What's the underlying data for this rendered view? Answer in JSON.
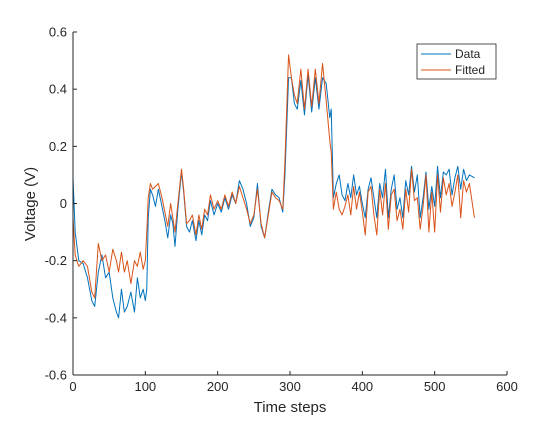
{
  "chart_data": {
    "type": "line",
    "xlabel": "Time steps",
    "ylabel": "Voltage (V)",
    "xlim": [
      0,
      600
    ],
    "ylim": [
      -0.6,
      0.6
    ],
    "x_ticks": [
      0,
      100,
      200,
      300,
      400,
      500,
      600
    ],
    "y_ticks": [
      -0.6,
      -0.4,
      -0.2,
      0,
      0.2,
      0.4,
      0.6
    ],
    "x_tick_labels": [
      "0",
      "100",
      "200",
      "300",
      "400",
      "500",
      "600"
    ],
    "y_tick_labels": [
      "-0.6",
      "-0.4",
      "-0.2",
      "0",
      "0.2",
      "0.4",
      "0.6"
    ],
    "grid": false,
    "legend_position": "top-right",
    "series": [
      {
        "name": "Data",
        "color": "#0072BD",
        "points": [
          [
            0,
            0.09
          ],
          [
            3,
            -0.1
          ],
          [
            8,
            -0.2
          ],
          [
            14,
            -0.21
          ],
          [
            20,
            -0.26
          ],
          [
            26,
            -0.34
          ],
          [
            30,
            -0.36
          ],
          [
            35,
            -0.24
          ],
          [
            40,
            -0.18
          ],
          [
            45,
            -0.26
          ],
          [
            50,
            -0.24
          ],
          [
            55,
            -0.33
          ],
          [
            60,
            -0.38
          ],
          [
            63,
            -0.4
          ],
          [
            67,
            -0.3
          ],
          [
            71,
            -0.38
          ],
          [
            75,
            -0.36
          ],
          [
            80,
            -0.31
          ],
          [
            85,
            -0.38
          ],
          [
            89,
            -0.26
          ],
          [
            93,
            -0.33
          ],
          [
            97,
            -0.3
          ],
          [
            100,
            -0.34
          ],
          [
            102,
            -0.3
          ],
          [
            104,
            -0.05
          ],
          [
            107,
            0.05
          ],
          [
            110,
            0.03
          ],
          [
            114,
            -0.01
          ],
          [
            118,
            0.05
          ],
          [
            123,
            -0.01
          ],
          [
            127,
            -0.06
          ],
          [
            131,
            -0.12
          ],
          [
            135,
            -0.04
          ],
          [
            138,
            -0.07
          ],
          [
            141,
            -0.15
          ],
          [
            145,
            -0.02
          ],
          [
            150,
            0.11
          ],
          [
            153,
            0.04
          ],
          [
            157,
            -0.08
          ],
          [
            161,
            -0.1
          ],
          [
            165,
            -0.06
          ],
          [
            170,
            -0.13
          ],
          [
            174,
            -0.06
          ],
          [
            178,
            -0.11
          ],
          [
            182,
            -0.04
          ],
          [
            186,
            -0.06
          ],
          [
            190,
            0.01
          ],
          [
            195,
            -0.04
          ],
          [
            200,
            0.0
          ],
          [
            205,
            -0.03
          ],
          [
            210,
            0.02
          ],
          [
            215,
            -0.02
          ],
          [
            220,
            0.03
          ],
          [
            225,
            0.0
          ],
          [
            230,
            0.08
          ],
          [
            235,
            0.05
          ],
          [
            240,
            0.0
          ],
          [
            245,
            -0.08
          ],
          [
            250,
            -0.05
          ],
          [
            255,
            0.07
          ],
          [
            260,
            -0.08
          ],
          [
            265,
            -0.12
          ],
          [
            270,
            -0.03
          ],
          [
            275,
            0.05
          ],
          [
            280,
            0.03
          ],
          [
            285,
            0.02
          ],
          [
            290,
            -0.03
          ],
          [
            293,
            0.1
          ],
          [
            298,
            0.44
          ],
          [
            302,
            0.44
          ],
          [
            306,
            0.35
          ],
          [
            310,
            0.33
          ],
          [
            315,
            0.43
          ],
          [
            320,
            0.31
          ],
          [
            325,
            0.45
          ],
          [
            330,
            0.32
          ],
          [
            335,
            0.44
          ],
          [
            340,
            0.33
          ],
          [
            345,
            0.44
          ],
          [
            350,
            0.42
          ],
          [
            355,
            0.3
          ],
          [
            357,
            0.33
          ],
          [
            360,
            0.02
          ],
          [
            364,
            0.07
          ],
          [
            368,
            0.1
          ],
          [
            372,
            0.03
          ],
          [
            376,
            0.01
          ],
          [
            380,
            0.07
          ],
          [
            384,
            0.02
          ],
          [
            388,
            0.1
          ],
          [
            392,
            0.03
          ],
          [
            396,
            0.06
          ],
          [
            400,
            0.0
          ],
          [
            404,
            -0.05
          ],
          [
            408,
            0.05
          ],
          [
            412,
            0.09
          ],
          [
            416,
            0.02
          ],
          [
            420,
            -0.05
          ],
          [
            424,
            0.07
          ],
          [
            428,
            0.02
          ],
          [
            432,
            0.12
          ],
          [
            436,
            -0.05
          ],
          [
            440,
            0.05
          ],
          [
            444,
            0.1
          ],
          [
            448,
            -0.02
          ],
          [
            452,
            0.02
          ],
          [
            456,
            -0.05
          ],
          [
            460,
            0.08
          ],
          [
            464,
            0.03
          ],
          [
            468,
            0.13
          ],
          [
            472,
            0.04
          ],
          [
            476,
            0.1
          ],
          [
            480,
            -0.05
          ],
          [
            484,
            0.02
          ],
          [
            488,
            0.11
          ],
          [
            492,
            -0.02
          ],
          [
            496,
            0.06
          ],
          [
            500,
            -0.01
          ],
          [
            504,
            0.13
          ],
          [
            508,
            0.02
          ],
          [
            512,
            0.11
          ],
          [
            516,
            0.1
          ],
          [
            520,
            0.12
          ],
          [
            524,
            0.03
          ],
          [
            528,
            0.09
          ],
          [
            532,
            0.13
          ],
          [
            536,
            0.05
          ],
          [
            540,
            0.12
          ],
          [
            544,
            0.08
          ],
          [
            548,
            0.1
          ],
          [
            555,
            0.09
          ]
        ]
      },
      {
        "name": "Fitted",
        "color": "#D95319",
        "points": [
          [
            0,
            -0.05
          ],
          [
            3,
            -0.18
          ],
          [
            8,
            -0.22
          ],
          [
            14,
            -0.2
          ],
          [
            20,
            -0.22
          ],
          [
            26,
            -0.31
          ],
          [
            30,
            -0.33
          ],
          [
            35,
            -0.14
          ],
          [
            40,
            -0.2
          ],
          [
            45,
            -0.18
          ],
          [
            50,
            -0.24
          ],
          [
            55,
            -0.16
          ],
          [
            60,
            -0.2
          ],
          [
            63,
            -0.24
          ],
          [
            67,
            -0.17
          ],
          [
            71,
            -0.24
          ],
          [
            75,
            -0.2
          ],
          [
            80,
            -0.28
          ],
          [
            85,
            -0.2
          ],
          [
            89,
            -0.22
          ],
          [
            93,
            -0.17
          ],
          [
            97,
            -0.23
          ],
          [
            100,
            -0.2
          ],
          [
            102,
            -0.1
          ],
          [
            104,
            0.02
          ],
          [
            107,
            0.07
          ],
          [
            110,
            0.05
          ],
          [
            114,
            0.06
          ],
          [
            118,
            0.07
          ],
          [
            123,
            0.02
          ],
          [
            127,
            -0.03
          ],
          [
            131,
            -0.08
          ],
          [
            135,
            0.0
          ],
          [
            138,
            -0.05
          ],
          [
            141,
            -0.1
          ],
          [
            145,
            0.0
          ],
          [
            150,
            0.12
          ],
          [
            153,
            0.05
          ],
          [
            157,
            -0.07
          ],
          [
            161,
            -0.06
          ],
          [
            165,
            -0.04
          ],
          [
            170,
            -0.11
          ],
          [
            174,
            -0.04
          ],
          [
            178,
            -0.09
          ],
          [
            182,
            -0.02
          ],
          [
            186,
            -0.04
          ],
          [
            190,
            0.03
          ],
          [
            195,
            -0.02
          ],
          [
            200,
            0.01
          ],
          [
            205,
            -0.02
          ],
          [
            210,
            0.03
          ],
          [
            215,
            -0.01
          ],
          [
            220,
            0.04
          ],
          [
            225,
            0.0
          ],
          [
            230,
            0.06
          ],
          [
            235,
            0.02
          ],
          [
            240,
            -0.02
          ],
          [
            245,
            -0.07
          ],
          [
            250,
            -0.04
          ],
          [
            255,
            0.05
          ],
          [
            260,
            -0.07
          ],
          [
            265,
            -0.12
          ],
          [
            270,
            -0.04
          ],
          [
            275,
            0.04
          ],
          [
            280,
            0.02
          ],
          [
            285,
            0.01
          ],
          [
            290,
            -0.02
          ],
          [
            293,
            0.15
          ],
          [
            298,
            0.52
          ],
          [
            302,
            0.44
          ],
          [
            306,
            0.38
          ],
          [
            310,
            0.35
          ],
          [
            315,
            0.47
          ],
          [
            320,
            0.33
          ],
          [
            325,
            0.47
          ],
          [
            330,
            0.34
          ],
          [
            335,
            0.47
          ],
          [
            340,
            0.35
          ],
          [
            345,
            0.49
          ],
          [
            350,
            0.36
          ],
          [
            355,
            0.22
          ],
          [
            357,
            0.18
          ],
          [
            360,
            -0.02
          ],
          [
            364,
            0.04
          ],
          [
            368,
            -0.02
          ],
          [
            372,
            -0.04
          ],
          [
            376,
            -0.01
          ],
          [
            380,
            0.03
          ],
          [
            384,
            -0.04
          ],
          [
            388,
            0.06
          ],
          [
            392,
            -0.02
          ],
          [
            396,
            0.04
          ],
          [
            400,
            -0.03
          ],
          [
            404,
            -0.11
          ],
          [
            408,
            0.04
          ],
          [
            412,
            0.06
          ],
          [
            416,
            -0.04
          ],
          [
            420,
            -0.11
          ],
          [
            424,
            0.05
          ],
          [
            428,
            -0.04
          ],
          [
            432,
            0.07
          ],
          [
            436,
            -0.09
          ],
          [
            440,
            0.03
          ],
          [
            444,
            0.05
          ],
          [
            448,
            -0.06
          ],
          [
            452,
            -0.02
          ],
          [
            456,
            -0.09
          ],
          [
            460,
            0.05
          ],
          [
            464,
            -0.03
          ],
          [
            468,
            0.12
          ],
          [
            472,
            0.01
          ],
          [
            476,
            0.02
          ],
          [
            480,
            -0.09
          ],
          [
            484,
            -0.01
          ],
          [
            488,
            0.1
          ],
          [
            492,
            -0.1
          ],
          [
            496,
            0.04
          ],
          [
            500,
            -0.1
          ],
          [
            504,
            0.1
          ],
          [
            508,
            -0.03
          ],
          [
            512,
            0.09
          ],
          [
            516,
            0.03
          ],
          [
            520,
            0.07
          ],
          [
            524,
            -0.01
          ],
          [
            528,
            0.04
          ],
          [
            532,
            0.1
          ],
          [
            536,
            -0.05
          ],
          [
            540,
            0.08
          ],
          [
            544,
            0.04
          ],
          [
            548,
            0.07
          ],
          [
            555,
            -0.05
          ]
        ]
      }
    ]
  }
}
